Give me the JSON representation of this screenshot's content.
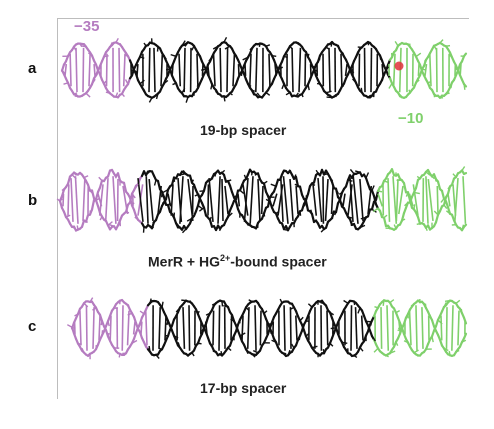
{
  "colors": {
    "backbone": "#111111",
    "minus35": "#b57cc0",
    "minus10": "#7fd06b",
    "highlight": "#e0303a",
    "rule": "#bdbdbd"
  },
  "panels": [
    {
      "letter": "a",
      "caption": "19-bp spacer",
      "minus35_label": "−35",
      "minus10_label": "−10",
      "has_highlight": true,
      "distorted": false
    },
    {
      "letter": "b",
      "caption_main": "MerR + HG",
      "caption_sup": "2+",
      "caption_end": "-bound spacer",
      "has_highlight": false,
      "distorted": true
    },
    {
      "letter": "c",
      "caption": "17-bp spacer",
      "has_highlight": false,
      "distorted": false
    }
  ]
}
